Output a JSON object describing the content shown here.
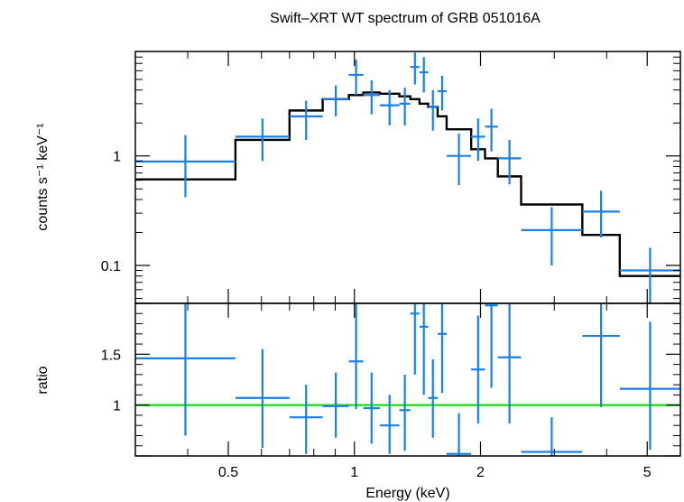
{
  "title": "Swift–XRT WT spectrum of GRB 051016A",
  "chart_data": [
    {
      "type": "scatter",
      "panel": "spectrum",
      "xscale": "log",
      "yscale": "log",
      "xlim": [
        0.3,
        6.0
      ],
      "ylim": [
        0.045,
        9.0
      ],
      "xlabel": "Energy (keV)",
      "ylabel": "counts s⁻¹ keV⁻¹",
      "xticklabels": [
        "0.5",
        "1",
        "2",
        "5"
      ],
      "xticks": [
        0.5,
        1,
        2,
        5
      ],
      "yticklabels": [
        "0.1",
        "1"
      ],
      "yticks": [
        0.1,
        1
      ],
      "colors": {
        "data": "#1a7fe6",
        "model": "#000000"
      },
      "series": [
        {
          "kind": "data",
          "points": [
            {
              "xlo": 0.3,
              "xhi": 0.52,
              "y": 0.89,
              "ylo": 0.42,
              "yhi": 1.55
            },
            {
              "xlo": 0.52,
              "xhi": 0.7,
              "y": 1.5,
              "ylo": 0.9,
              "yhi": 2.2
            },
            {
              "xlo": 0.7,
              "xhi": 0.84,
              "y": 2.3,
              "ylo": 1.4,
              "yhi": 3.2
            },
            {
              "xlo": 0.84,
              "xhi": 0.97,
              "y": 3.3,
              "ylo": 2.3,
              "yhi": 4.4
            },
            {
              "xlo": 0.97,
              "xhi": 1.05,
              "y": 5.5,
              "ylo": 3.6,
              "yhi": 7.6
            },
            {
              "xlo": 1.05,
              "xhi": 1.15,
              "y": 3.6,
              "ylo": 2.4,
              "yhi": 4.9
            },
            {
              "xlo": 1.15,
              "xhi": 1.28,
              "y": 2.9,
              "ylo": 1.9,
              "yhi": 4.0
            },
            {
              "xlo": 1.28,
              "xhi": 1.36,
              "y": 3.0,
              "ylo": 1.9,
              "yhi": 4.2
            },
            {
              "xlo": 1.36,
              "xhi": 1.43,
              "y": 6.5,
              "ylo": 4.5,
              "yhi": 8.8
            },
            {
              "xlo": 1.43,
              "xhi": 1.5,
              "y": 5.8,
              "ylo": 3.8,
              "yhi": 8.0
            },
            {
              "xlo": 1.5,
              "xhi": 1.58,
              "y": 2.8,
              "ylo": 1.7,
              "yhi": 4.0
            },
            {
              "xlo": 1.58,
              "xhi": 1.66,
              "y": 3.9,
              "ylo": 2.6,
              "yhi": 5.4
            },
            {
              "xlo": 1.66,
              "xhi": 1.9,
              "y": 1.0,
              "ylo": 0.54,
              "yhi": 1.6
            },
            {
              "xlo": 1.9,
              "xhi": 2.05,
              "y": 1.5,
              "ylo": 0.9,
              "yhi": 2.2
            },
            {
              "xlo": 2.05,
              "xhi": 2.2,
              "y": 1.85,
              "ylo": 1.1,
              "yhi": 2.7
            },
            {
              "xlo": 2.2,
              "xhi": 2.5,
              "y": 0.95,
              "ylo": 0.55,
              "yhi": 1.4
            },
            {
              "xlo": 2.5,
              "xhi": 3.5,
              "y": 0.21,
              "ylo": 0.1,
              "yhi": 0.34
            },
            {
              "xlo": 3.5,
              "xhi": 4.3,
              "y": 0.31,
              "ylo": 0.18,
              "yhi": 0.48
            },
            {
              "xlo": 4.3,
              "xhi": 6.0,
              "y": 0.09,
              "ylo": 0.045,
              "yhi": 0.145
            }
          ]
        },
        {
          "kind": "model",
          "steps": [
            {
              "xlo": 0.3,
              "xhi": 0.52,
              "y": 0.61
            },
            {
              "xlo": 0.52,
              "xhi": 0.7,
              "y": 1.4
            },
            {
              "xlo": 0.7,
              "xhi": 0.84,
              "y": 2.6
            },
            {
              "xlo": 0.84,
              "xhi": 0.97,
              "y": 3.3
            },
            {
              "xlo": 0.97,
              "xhi": 1.05,
              "y": 3.6
            },
            {
              "xlo": 1.05,
              "xhi": 1.15,
              "y": 3.8
            },
            {
              "xlo": 1.15,
              "xhi": 1.28,
              "y": 3.7
            },
            {
              "xlo": 1.28,
              "xhi": 1.36,
              "y": 3.5
            },
            {
              "xlo": 1.36,
              "xhi": 1.43,
              "y": 3.3
            },
            {
              "xlo": 1.43,
              "xhi": 1.5,
              "y": 3.0
            },
            {
              "xlo": 1.5,
              "xhi": 1.58,
              "y": 2.8
            },
            {
              "xlo": 1.58,
              "xhi": 1.66,
              "y": 2.3
            },
            {
              "xlo": 1.66,
              "xhi": 1.9,
              "y": 1.75
            },
            {
              "xlo": 1.9,
              "xhi": 2.05,
              "y": 1.15
            },
            {
              "xlo": 2.05,
              "xhi": 2.2,
              "y": 0.95
            },
            {
              "xlo": 2.2,
              "xhi": 2.5,
              "y": 0.65
            },
            {
              "xlo": 2.5,
              "xhi": 3.5,
              "y": 0.36
            },
            {
              "xlo": 3.5,
              "xhi": 4.3,
              "y": 0.19
            },
            {
              "xlo": 4.3,
              "xhi": 6.0,
              "y": 0.08
            }
          ]
        }
      ]
    },
    {
      "type": "scatter",
      "panel": "ratio",
      "xscale": "log",
      "yscale": "linear",
      "xlim": [
        0.3,
        6.0
      ],
      "ylim": [
        0.5,
        2.0
      ],
      "xlabel": "Energy (keV)",
      "ylabel": "ratio",
      "xticklabels": [
        "0.5",
        "1",
        "2",
        "5"
      ],
      "xticks": [
        0.5,
        1,
        2,
        5
      ],
      "yticklabels": [
        "1",
        "1.5"
      ],
      "yticks": [
        1,
        1.5
      ],
      "reference_line": 1,
      "colors": {
        "data": "#1a7fe6",
        "reference": "#22dd22"
      },
      "series": [
        {
          "kind": "data",
          "points": [
            {
              "xlo": 0.3,
              "xhi": 0.52,
              "y": 1.46,
              "ylo": 0.7,
              "yhi": 2.0
            },
            {
              "xlo": 0.52,
              "xhi": 0.7,
              "y": 1.07,
              "ylo": 0.58,
              "yhi": 1.55
            },
            {
              "xlo": 0.7,
              "xhi": 0.84,
              "y": 0.88,
              "ylo": 0.52,
              "yhi": 1.2
            },
            {
              "xlo": 0.84,
              "xhi": 0.97,
              "y": 0.99,
              "ylo": 0.68,
              "yhi": 1.32
            },
            {
              "xlo": 0.97,
              "xhi": 1.05,
              "y": 1.43,
              "ylo": 0.96,
              "yhi": 2.0
            },
            {
              "xlo": 1.05,
              "xhi": 1.15,
              "y": 0.97,
              "ylo": 0.62,
              "yhi": 1.32
            },
            {
              "xlo": 1.15,
              "xhi": 1.28,
              "y": 0.8,
              "ylo": 0.52,
              "yhi": 1.1
            },
            {
              "xlo": 1.28,
              "xhi": 1.36,
              "y": 0.95,
              "ylo": 0.55,
              "yhi": 1.3
            },
            {
              "xlo": 1.36,
              "xhi": 1.43,
              "y": 1.9,
              "ylo": 1.3,
              "yhi": 2.0
            },
            {
              "xlo": 1.43,
              "xhi": 1.5,
              "y": 1.77,
              "ylo": 1.1,
              "yhi": 2.0
            },
            {
              "xlo": 1.5,
              "xhi": 1.58,
              "y": 1.07,
              "ylo": 0.68,
              "yhi": 1.45
            },
            {
              "xlo": 1.58,
              "xhi": 1.66,
              "y": 1.7,
              "ylo": 1.12,
              "yhi": 2.0
            },
            {
              "xlo": 1.66,
              "xhi": 1.9,
              "y": 0.52,
              "ylo": 0.5,
              "yhi": 0.92
            },
            {
              "xlo": 1.9,
              "xhi": 2.05,
              "y": 1.35,
              "ylo": 0.82,
              "yhi": 1.88
            },
            {
              "xlo": 2.05,
              "xhi": 2.2,
              "y": 1.98,
              "ylo": 1.17,
              "yhi": 2.0
            },
            {
              "xlo": 2.2,
              "xhi": 2.5,
              "y": 1.47,
              "ylo": 0.82,
              "yhi": 2.0
            },
            {
              "xlo": 2.5,
              "xhi": 3.5,
              "y": 0.54,
              "ylo": 0.5,
              "yhi": 0.88
            },
            {
              "xlo": 3.5,
              "xhi": 4.3,
              "y": 1.68,
              "ylo": 0.98,
              "yhi": 2.0
            },
            {
              "xlo": 4.3,
              "xhi": 6.0,
              "y": 1.16,
              "ylo": 0.56,
              "yhi": 1.82
            }
          ]
        }
      ]
    }
  ]
}
